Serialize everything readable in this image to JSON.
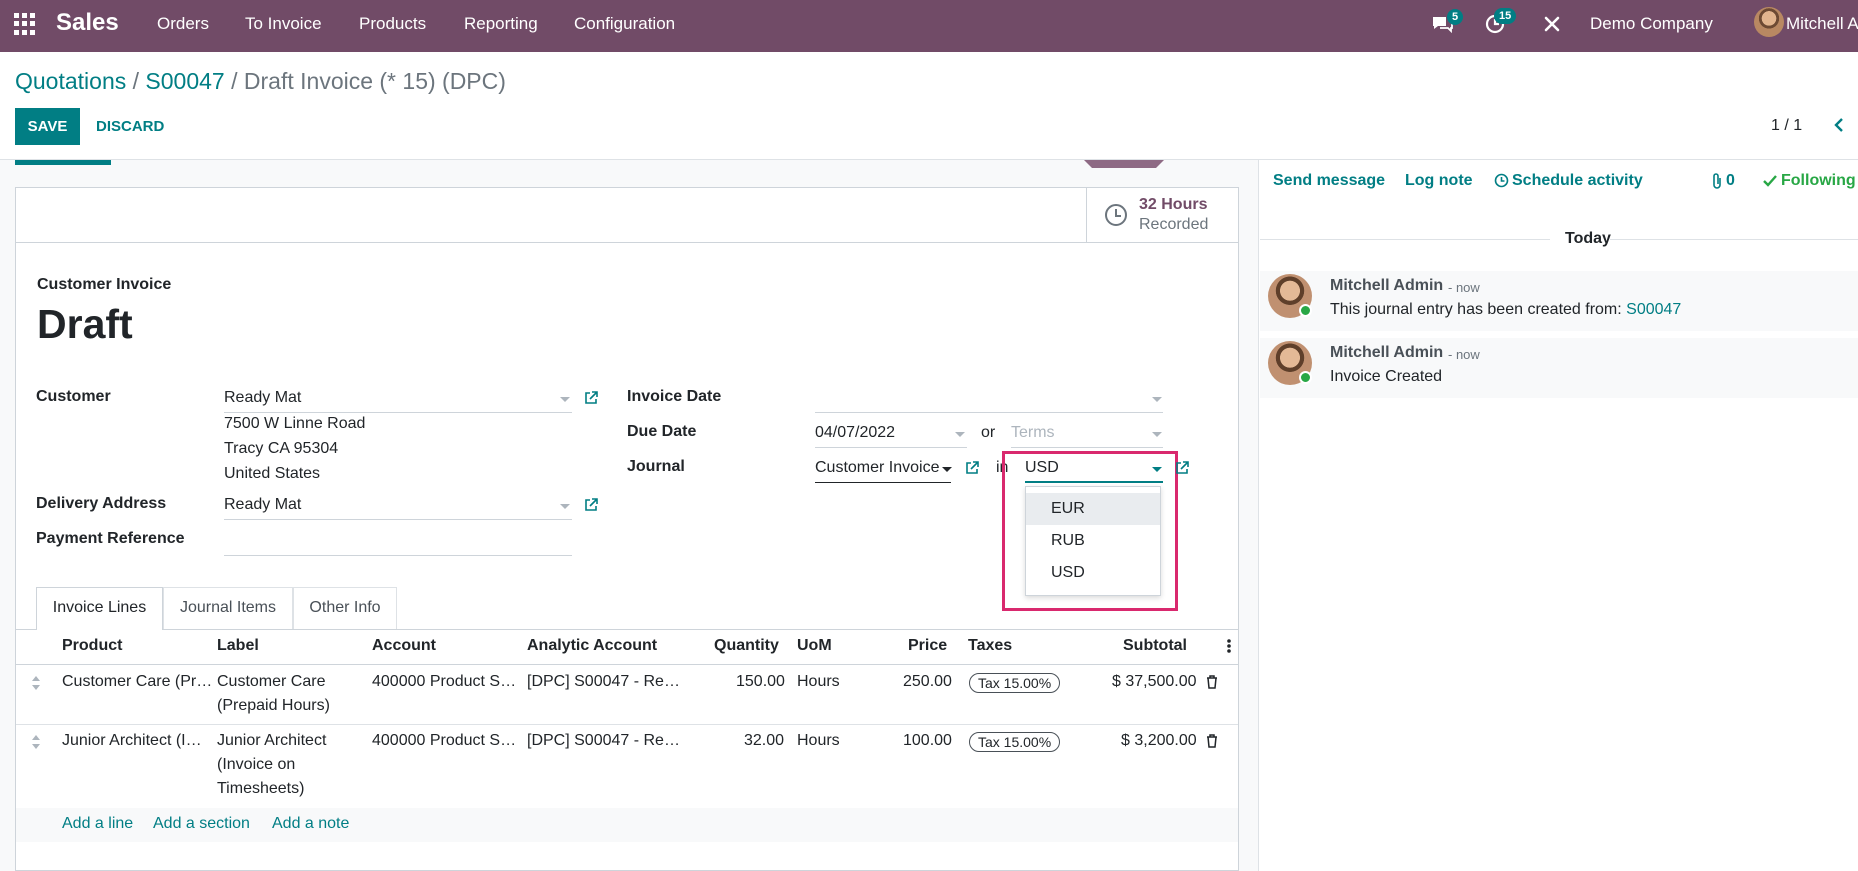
{
  "navbar": {
    "app_name": "Sales",
    "menu": [
      "Orders",
      "To Invoice",
      "Products",
      "Reporting",
      "Configuration"
    ],
    "messages_count": "5",
    "activities_count": "15",
    "company": "Demo Company",
    "user": "Mitchell A"
  },
  "breadcrumb": {
    "quotations": "Quotations",
    "sep1": " / ",
    "order": "S00047",
    "sep2": " / ",
    "current": "Draft Invoice (* 15) (DPC)"
  },
  "actions": {
    "save": "SAVE",
    "discard": "DISCARD"
  },
  "pager": {
    "value": "1 / 1"
  },
  "stat": {
    "value": "32 Hours",
    "label": "Recorded"
  },
  "invoice": {
    "type": "Customer Invoice",
    "state": "Draft",
    "customer_label": "Customer",
    "customer": "Ready Mat",
    "address_line1": "7500 W Linne Road",
    "address_line2": "Tracy CA 95304",
    "address_line3": "United States",
    "delivery_label": "Delivery Address",
    "delivery": "Ready Mat",
    "payment_ref_label": "Payment Reference",
    "invoice_date_label": "Invoice Date",
    "due_date_label": "Due Date",
    "due_date": "04/07/2022",
    "or_text": "or",
    "terms_placeholder": "Terms",
    "journal_label": "Journal",
    "journal": "Customer Invoice",
    "in_text": "in",
    "currency": "USD"
  },
  "currency_dropdown": {
    "options": [
      "EUR",
      "RUB",
      "USD"
    ],
    "highlighted": "EUR"
  },
  "tabs": [
    "Invoice Lines",
    "Journal Items",
    "Other Info"
  ],
  "table": {
    "headers": [
      "Product",
      "Label",
      "Account",
      "Analytic Account",
      "Quantity",
      "UoM",
      "Price",
      "Taxes",
      "Subtotal"
    ],
    "rows": [
      {
        "product": "Customer Care (Pr…",
        "label": "Customer Care (Prepaid Hours)",
        "account": "400000 Product S…",
        "analytic": "[DPC] S00047 - Re…",
        "quantity": "150.00",
        "uom": "Hours",
        "price": "250.00",
        "tax": "Tax 15.00%",
        "subtotal": "$ 37,500.00"
      },
      {
        "product": "Junior Architect (I…",
        "label": "Junior Architect (Invoice on Timesheets)",
        "account": "400000 Product S…",
        "analytic": "[DPC] S00047 - Re…",
        "quantity": "32.00",
        "uom": "Hours",
        "price": "100.00",
        "tax": "Tax 15.00%",
        "subtotal": "$ 3,200.00"
      }
    ],
    "add_line": "Add a line",
    "add_section": "Add a section",
    "add_note": "Add a note"
  },
  "chatter": {
    "send_message": "Send message",
    "log_note": "Log note",
    "schedule_activity": "Schedule activity",
    "attachments": "0",
    "following": "Following",
    "today": "Today",
    "messages": [
      {
        "author": "Mitchell Admin",
        "date": "- now",
        "body": "This journal entry has been created from: ",
        "link": "S00047"
      },
      {
        "author": "Mitchell Admin",
        "date": "- now",
        "body": "Invoice Created"
      }
    ]
  },
  "colors": {
    "navbar": "#714b67",
    "primary": "#017e84",
    "highlight_box": "#d9296e"
  }
}
